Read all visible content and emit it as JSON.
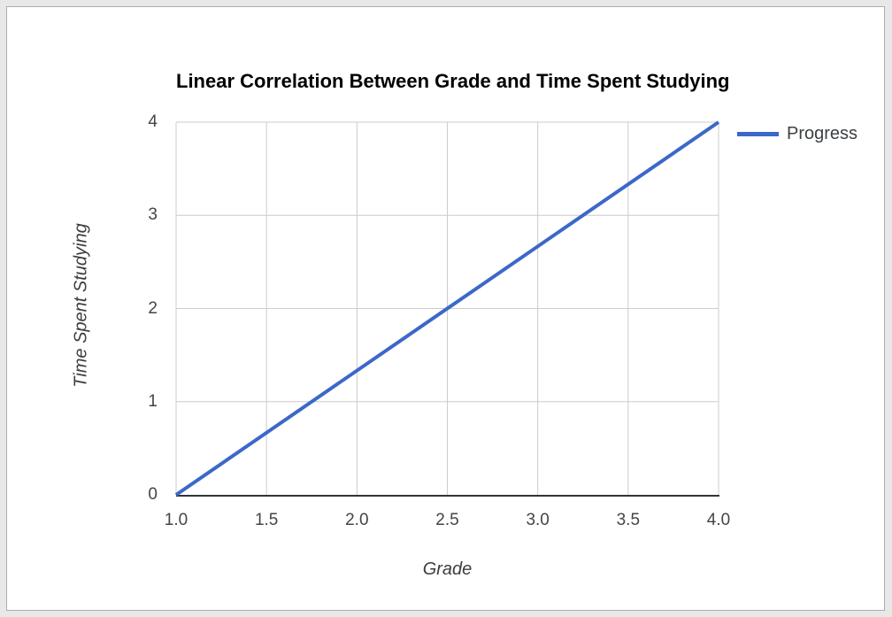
{
  "window": {
    "page_background": "#e8e8e8",
    "card_background": "#ffffff",
    "card_border": "#adadad"
  },
  "chart_data": {
    "type": "line",
    "title": "Linear Correlation Between Grade and Time Spent Studying",
    "xlabel": "Grade",
    "ylabel": "Time Spent Studying",
    "series": [
      {
        "name": "Progress",
        "color": "#3b68c9",
        "points": [
          [
            1.0,
            0.0
          ],
          [
            4.0,
            4.0
          ]
        ],
        "shape": "straight-line",
        "line_width": 4,
        "markers": false
      }
    ],
    "xlim": [
      1.0,
      4.0
    ],
    "ylim": [
      0,
      4
    ],
    "x_ticks": [
      1.0,
      1.5,
      2.0,
      2.5,
      3.0,
      3.5,
      4.0
    ],
    "x_tick_labels": [
      "1.0",
      "1.5",
      "2.0",
      "2.5",
      "3.0",
      "3.5",
      "4.0"
    ],
    "y_ticks": [
      0,
      1,
      2,
      3,
      4
    ],
    "y_tick_labels": [
      "0",
      "1",
      "2",
      "3",
      "4"
    ],
    "grid": true,
    "legend_position": "right-top",
    "colors": {
      "grid": "#cccccc",
      "axis": "#333333",
      "tick_text": "#444444",
      "title_text": "#000000",
      "axis_title_text": "#3d3d3d",
      "legend_text": "#3c4043"
    }
  },
  "legend": {
    "items": [
      {
        "label": "Progress",
        "color": "#3b68c9"
      }
    ]
  }
}
